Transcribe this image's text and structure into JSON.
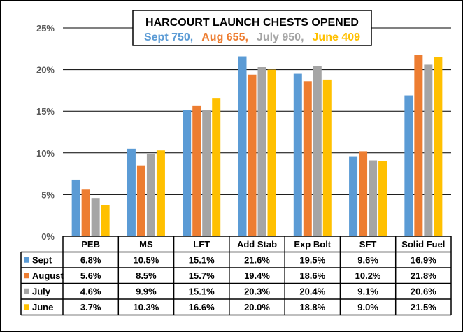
{
  "chart_data": {
    "type": "bar",
    "title": "HARCOURT LAUNCH CHESTS OPENED",
    "subtitle": [
      {
        "text": "Sept 750,",
        "color": "#5B9BD5"
      },
      {
        "text": "Aug 655,",
        "color": "#ED7D31"
      },
      {
        "text": "July 950,",
        "color": "#A5A5A5"
      },
      {
        "text": "June 409",
        "color": "#FFC000"
      }
    ],
    "categories": [
      "PEB",
      "MS",
      "LFT",
      "Add Stab",
      "Exp Bolt",
      "SFT",
      "Solid Fuel"
    ],
    "series": [
      {
        "name": "Sept",
        "color": "#5B9BD5",
        "values": [
          6.8,
          10.5,
          15.1,
          21.6,
          19.5,
          9.6,
          16.9
        ],
        "labels": [
          "6.8%",
          "10.5%",
          "15.1%",
          "21.6%",
          "19.5%",
          "9.6%",
          "16.9%"
        ]
      },
      {
        "name": "August",
        "color": "#ED7D31",
        "values": [
          5.6,
          8.5,
          15.7,
          19.4,
          18.6,
          10.2,
          21.8
        ],
        "labels": [
          "5.6%",
          "8.5%",
          "15.7%",
          "19.4%",
          "18.6%",
          "10.2%",
          "21.8%"
        ]
      },
      {
        "name": "July",
        "color": "#A5A5A5",
        "values": [
          4.6,
          9.9,
          15.1,
          20.3,
          20.4,
          9.1,
          20.6
        ],
        "labels": [
          "4.6%",
          "9.9%",
          "15.1%",
          "20.3%",
          "20.4%",
          "9.1%",
          "20.6%"
        ]
      },
      {
        "name": "June",
        "color": "#FFC000",
        "values": [
          3.7,
          10.3,
          16.6,
          20.0,
          18.8,
          9.0,
          21.5
        ],
        "labels": [
          "3.7%",
          "10.3%",
          "16.6%",
          "20.0%",
          "18.8%",
          "9.0%",
          "21.5%"
        ]
      }
    ],
    "yticks": [
      "0%",
      "5%",
      "10%",
      "15%",
      "20%",
      "25%"
    ],
    "ylim": [
      0,
      25
    ],
    "grid": true,
    "legend": "data-table"
  }
}
